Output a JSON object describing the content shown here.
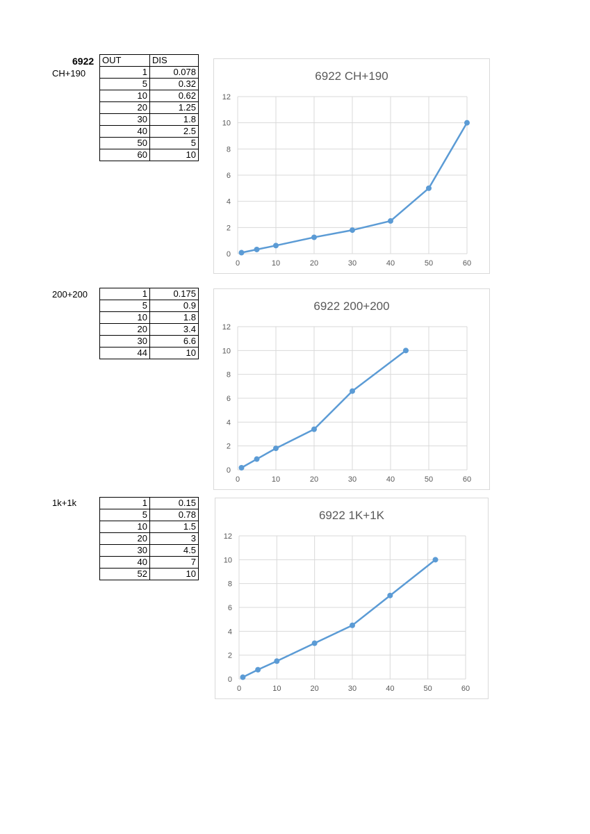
{
  "header": {
    "model": "6922",
    "col_out": "OUT",
    "col_dis": "DIS"
  },
  "sections": [
    {
      "label": "CH+190",
      "rows": [
        {
          "out": "1",
          "dis": "0.078"
        },
        {
          "out": "5",
          "dis": "0.32"
        },
        {
          "out": "10",
          "dis": "0.62"
        },
        {
          "out": "20",
          "dis": "1.25"
        },
        {
          "out": "30",
          "dis": "1.8"
        },
        {
          "out": "40",
          "dis": "2.5"
        },
        {
          "out": "50",
          "dis": "5"
        },
        {
          "out": "60",
          "dis": "10"
        }
      ]
    },
    {
      "label": "200+200",
      "rows": [
        {
          "out": "1",
          "dis": "0.175"
        },
        {
          "out": "5",
          "dis": "0.9"
        },
        {
          "out": "10",
          "dis": "1.8"
        },
        {
          "out": "20",
          "dis": "3.4"
        },
        {
          "out": "30",
          "dis": "6.6"
        },
        {
          "out": "44",
          "dis": "10"
        }
      ]
    },
    {
      "label": "1k+1k",
      "rows": [
        {
          "out": "1",
          "dis": "0.15"
        },
        {
          "out": "5",
          "dis": "0.78"
        },
        {
          "out": "10",
          "dis": "1.5"
        },
        {
          "out": "20",
          "dis": "3"
        },
        {
          "out": "30",
          "dis": "4.5"
        },
        {
          "out": "40",
          "dis": "7"
        },
        {
          "out": "52",
          "dis": "10"
        }
      ]
    }
  ],
  "chart_data": [
    {
      "type": "line",
      "title": "6922 CH+190",
      "x": [
        1,
        5,
        10,
        20,
        30,
        40,
        50,
        60
      ],
      "series": [
        {
          "values": [
            0.078,
            0.32,
            0.62,
            1.25,
            1.8,
            2.5,
            5,
            10
          ]
        }
      ],
      "xlim": [
        0,
        60
      ],
      "ylim": [
        0,
        12
      ],
      "xticks": [
        0,
        10,
        20,
        30,
        40,
        50,
        60
      ],
      "yticks": [
        0,
        2,
        4,
        6,
        8,
        10,
        12
      ],
      "grid": true,
      "color": "#5b9bd5"
    },
    {
      "type": "line",
      "title": "6922 200+200",
      "x": [
        1,
        5,
        10,
        20,
        30,
        44
      ],
      "series": [
        {
          "values": [
            0.175,
            0.9,
            1.8,
            3.4,
            6.6,
            10
          ]
        }
      ],
      "xlim": [
        0,
        60
      ],
      "ylim": [
        0,
        12
      ],
      "xticks": [
        0,
        10,
        20,
        30,
        40,
        50,
        60
      ],
      "yticks": [
        0,
        2,
        4,
        6,
        8,
        10,
        12
      ],
      "grid": true,
      "color": "#5b9bd5"
    },
    {
      "type": "line",
      "title": "6922 1K+1K",
      "x": [
        1,
        5,
        10,
        20,
        30,
        40,
        52
      ],
      "series": [
        {
          "values": [
            0.15,
            0.78,
            1.5,
            3,
            4.5,
            7,
            10
          ]
        }
      ],
      "xlim": [
        0,
        60
      ],
      "ylim": [
        0,
        12
      ],
      "xticks": [
        0,
        10,
        20,
        30,
        40,
        50,
        60
      ],
      "yticks": [
        0,
        2,
        4,
        6,
        8,
        10,
        12
      ],
      "grid": true,
      "color": "#5b9bd5"
    }
  ]
}
